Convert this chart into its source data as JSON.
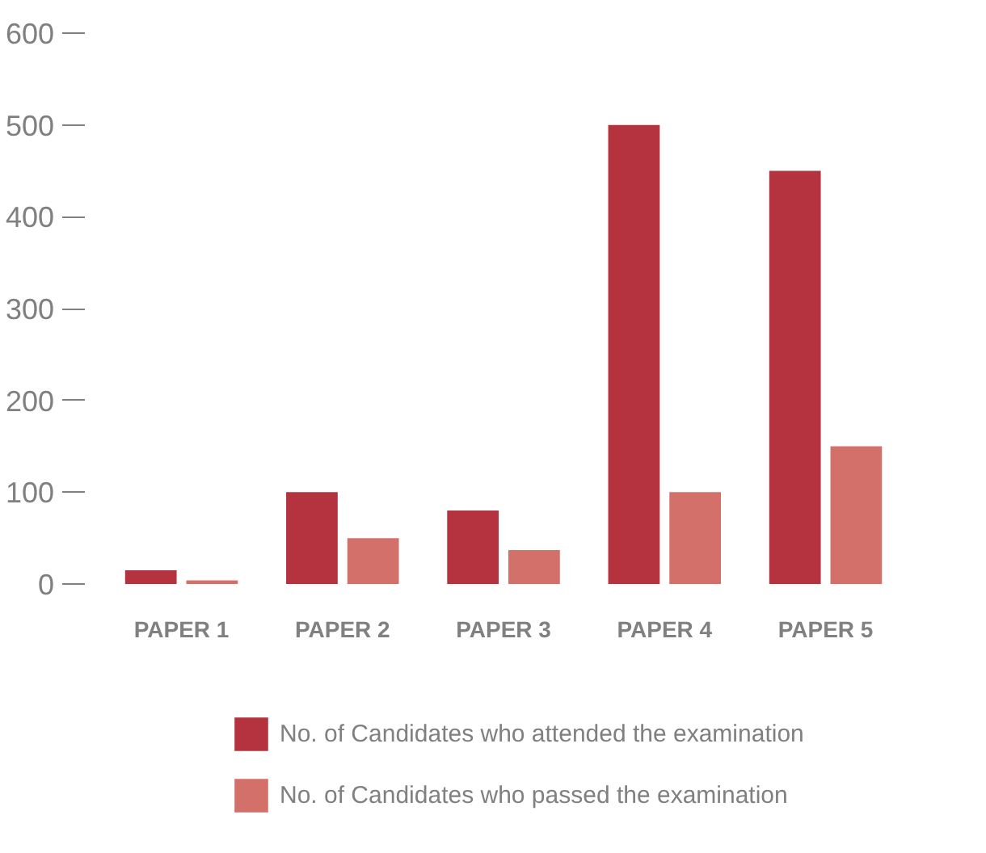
{
  "chart_data": {
    "type": "bar",
    "categories": [
      "PAPER 1",
      "PAPER 2",
      "PAPER 3",
      "PAPER 4",
      "PAPER 5"
    ],
    "series": [
      {
        "name": "No. of Candidates who attended the examination",
        "color": "#b5323f",
        "values": [
          15,
          100,
          80,
          500,
          450
        ]
      },
      {
        "name": "No. of Candidates who passed the examination",
        "color": "#d4706a",
        "values": [
          4,
          50,
          37,
          100,
          150
        ]
      }
    ],
    "ylim": [
      0,
      600
    ],
    "yticks": [
      0,
      100,
      200,
      300,
      400,
      500,
      600
    ],
    "grid": false,
    "legend": "bottom"
  }
}
